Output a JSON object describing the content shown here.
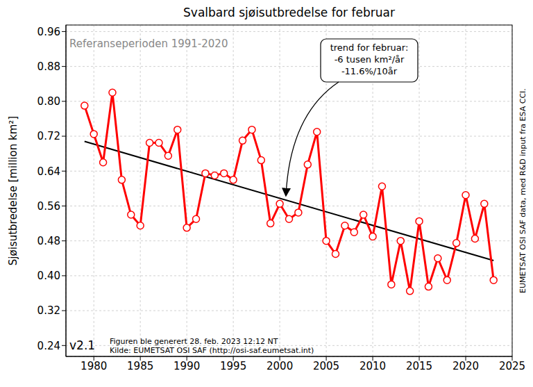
{
  "chart_data": {
    "type": "line",
    "title": "Svalbard sjøisutbredelse for februar",
    "subtitle": "Referanseperioden 1991-2020",
    "y_label": "Sjøisutbredelse [million km²]",
    "x": [
      1979,
      1980,
      1981,
      1982,
      1983,
      1984,
      1985,
      1986,
      1987,
      1988,
      1989,
      1990,
      1991,
      1992,
      1993,
      1994,
      1995,
      1996,
      1997,
      1998,
      1999,
      2000,
      2001,
      2002,
      2003,
      2004,
      2005,
      2006,
      2007,
      2008,
      2009,
      2010,
      2011,
      2012,
      2013,
      2014,
      2015,
      2016,
      2017,
      2018,
      2019,
      2020,
      2021,
      2022,
      2023
    ],
    "values": [
      0.79,
      0.725,
      0.66,
      0.82,
      0.62,
      0.54,
      0.515,
      0.705,
      0.705,
      0.675,
      0.735,
      0.51,
      0.53,
      0.635,
      0.63,
      0.635,
      0.62,
      0.71,
      0.735,
      0.665,
      0.52,
      0.565,
      0.53,
      0.545,
      0.655,
      0.73,
      0.48,
      0.45,
      0.515,
      0.5,
      0.54,
      0.49,
      0.605,
      0.38,
      0.48,
      0.365,
      0.525,
      0.375,
      0.44,
      0.39,
      0.475,
      0.585,
      0.485,
      0.565,
      0.39
    ],
    "color": "#ff0000",
    "marker": "o",
    "trend": {
      "x": [
        1979,
        2023
      ],
      "values": [
        0.708,
        0.435
      ],
      "color": "#000000"
    },
    "annotation": [
      "trend for februar:",
      "-6 tusen km²/år",
      "-11.6%/10år"
    ],
    "version": "v2.1",
    "footnote": [
      "Figuren ble generert 28. feb. 2023 12:12 NT",
      "Kilde: EUMETSAT OSI SAF (http://osi-saf.eumetsat.int)"
    ],
    "credit": "EUMETSAT OSI SAF data, med R&D input fra ESA CCI.",
    "xlim": [
      1977,
      2025
    ],
    "xticks": [
      1980,
      1985,
      1990,
      1995,
      2000,
      2005,
      2010,
      2015,
      2020,
      2025
    ],
    "ylim": [
      0.215,
      0.975
    ],
    "yticks": [
      0.24,
      0.32,
      {
        "value": 0.4,
        "label": "0.40"
      },
      0.48,
      0.56,
      0.64,
      0.72,
      {
        "value": 0.8,
        "label": "0.80"
      },
      0.88,
      0.96
    ],
    "grid": true
  }
}
